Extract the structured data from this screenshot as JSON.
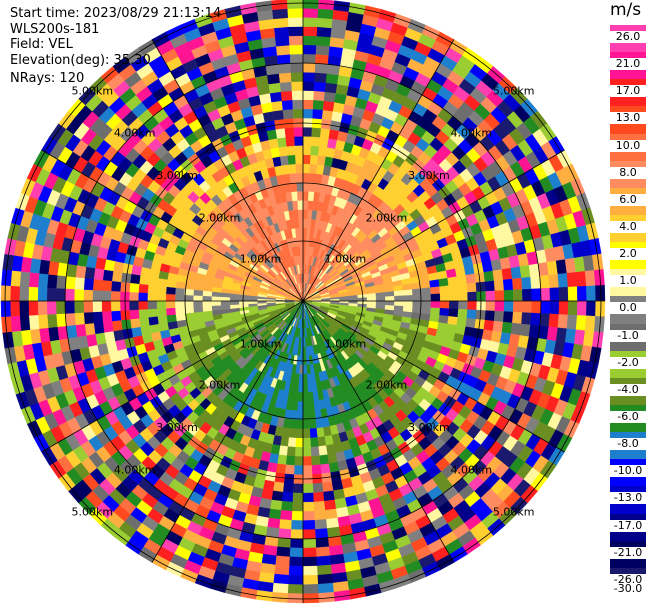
{
  "meta": {
    "start_time": "Start time: 2023/08/29 21:13:14",
    "device": "WLS200s-181",
    "field": "Field: VEL",
    "elevation": "Elevation(deg): 35.30",
    "nrays": "NRays: 120"
  },
  "colorbar": {
    "unit": "m/s",
    "levels": [
      "26.0",
      "21.0",
      "17.0",
      "13.0",
      "10.0",
      "8.0",
      "6.0",
      "4.0",
      "2.0",
      "1.0",
      "0.0",
      "-1.0",
      "-2.0",
      "-4.0",
      "-6.0",
      "-8.0",
      "-10.0",
      "-13.0",
      "-17.0",
      "-21.0",
      "-26.0",
      "-30.0"
    ],
    "colors": [
      "#ff3fb0",
      "#ff1493",
      "#ff2020",
      "#ff4a20",
      "#ff7040",
      "#ff8c60",
      "#ffae40",
      "#ffd030",
      "#ffff00",
      "#fff8a0",
      "#808080",
      "#6e6e6e",
      "#9acd32",
      "#6b8e23",
      "#228b22",
      "#1e7fcf",
      "#0000ff",
      "#0000cd",
      "#00008b",
      "#000060",
      "#191970"
    ]
  },
  "chart_data": {
    "type": "heatmap",
    "subtype": "radar-ppi",
    "field": "VEL",
    "units": "m/s",
    "nrays": 120,
    "elevation_deg": 35.3,
    "ring_labels": [
      "1.00km",
      "2.00km",
      "3.00km",
      "4.00km",
      "5.00km"
    ],
    "max_range_km": 5.0,
    "colormap_limits": [
      -30,
      26
    ],
    "pattern": "near-range positive velocities (yellow/orange) to the north, negative (green) to the south, noisy random values at far range"
  }
}
